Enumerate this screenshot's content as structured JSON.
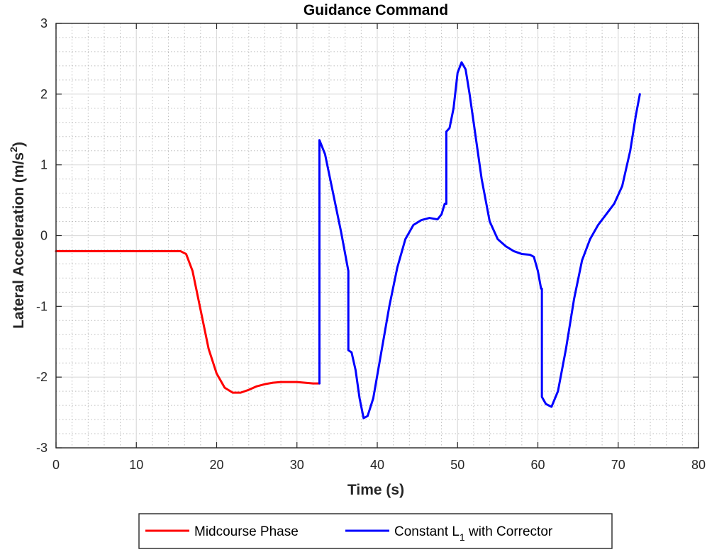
{
  "chart_data": {
    "type": "line",
    "title": "Guidance Command",
    "xlabel": "Time (s)",
    "ylabel": {
      "main": "Lateral Acceleration (m/s",
      "sup": "2",
      "close": ")"
    },
    "xlim": [
      0,
      80
    ],
    "ylim": [
      -3,
      3
    ],
    "xticks": [
      0,
      10,
      20,
      30,
      40,
      50,
      60,
      70,
      80
    ],
    "yticks": [
      -3,
      -2,
      -1,
      0,
      1,
      2,
      3
    ],
    "xtick_labels": [
      "0",
      "10",
      "20",
      "30",
      "40",
      "50",
      "60",
      "70",
      "80"
    ],
    "ytick_labels": [
      "-3",
      "-2",
      "-1",
      "0",
      "1",
      "2",
      "3"
    ],
    "grid": true,
    "minor_grid": true,
    "legend_position": "bottom-outside",
    "series": [
      {
        "name": "Midcourse Phase",
        "color": "#ff0000",
        "x": [
          0,
          8,
          15.5,
          16.2,
          17,
          18,
          19,
          20,
          21,
          22,
          23,
          24,
          25,
          26,
          27,
          28,
          29,
          30,
          31,
          32,
          32.8
        ],
        "y": [
          -0.22,
          -0.22,
          -0.22,
          -0.26,
          -0.5,
          -1.05,
          -1.6,
          -1.95,
          -2.15,
          -2.22,
          -2.22,
          -2.18,
          -2.13,
          -2.1,
          -2.08,
          -2.07,
          -2.07,
          -2.07,
          -2.08,
          -2.09,
          -2.09
        ]
      },
      {
        "name_parts": {
          "main": "Constant L",
          "sub": "1",
          "rest": " with Corrector"
        },
        "color": "#0000ff",
        "x": [
          32.8,
          32.8,
          33.5,
          34.5,
          35.5,
          36.4,
          36.4,
          36.8,
          37.3,
          37.8,
          38.3,
          38.8,
          39.5,
          40.5,
          41.5,
          42.5,
          43.5,
          44.5,
          45.5,
          46.5,
          47.5,
          48,
          48.4,
          48.6,
          48.6,
          49,
          49.5,
          50,
          50.5,
          51,
          51.5,
          52,
          53,
          54,
          55,
          56,
          57,
          58,
          59,
          59.5,
          60,
          60.4,
          60.5,
          60.5,
          61,
          61.7,
          62.5,
          63.5,
          64.5,
          65.5,
          66.5,
          67.5,
          68.5,
          69.5,
          70.5,
          71.5,
          72.2,
          72.7
        ],
        "y": [
          -2.09,
          1.35,
          1.15,
          0.6,
          0.05,
          -0.5,
          -1.62,
          -1.65,
          -1.9,
          -2.3,
          -2.58,
          -2.55,
          -2.3,
          -1.65,
          -1.0,
          -0.45,
          -0.05,
          0.15,
          0.22,
          0.25,
          0.23,
          0.3,
          0.45,
          0.45,
          1.47,
          1.52,
          1.8,
          2.3,
          2.45,
          2.35,
          2.0,
          1.6,
          0.8,
          0.2,
          -0.05,
          -0.15,
          -0.22,
          -0.26,
          -0.27,
          -0.3,
          -0.5,
          -0.75,
          -0.75,
          -2.28,
          -2.38,
          -2.42,
          -2.2,
          -1.6,
          -0.9,
          -0.35,
          -0.05,
          0.15,
          0.3,
          0.45,
          0.7,
          1.2,
          1.7,
          2.0
        ]
      }
    ]
  }
}
